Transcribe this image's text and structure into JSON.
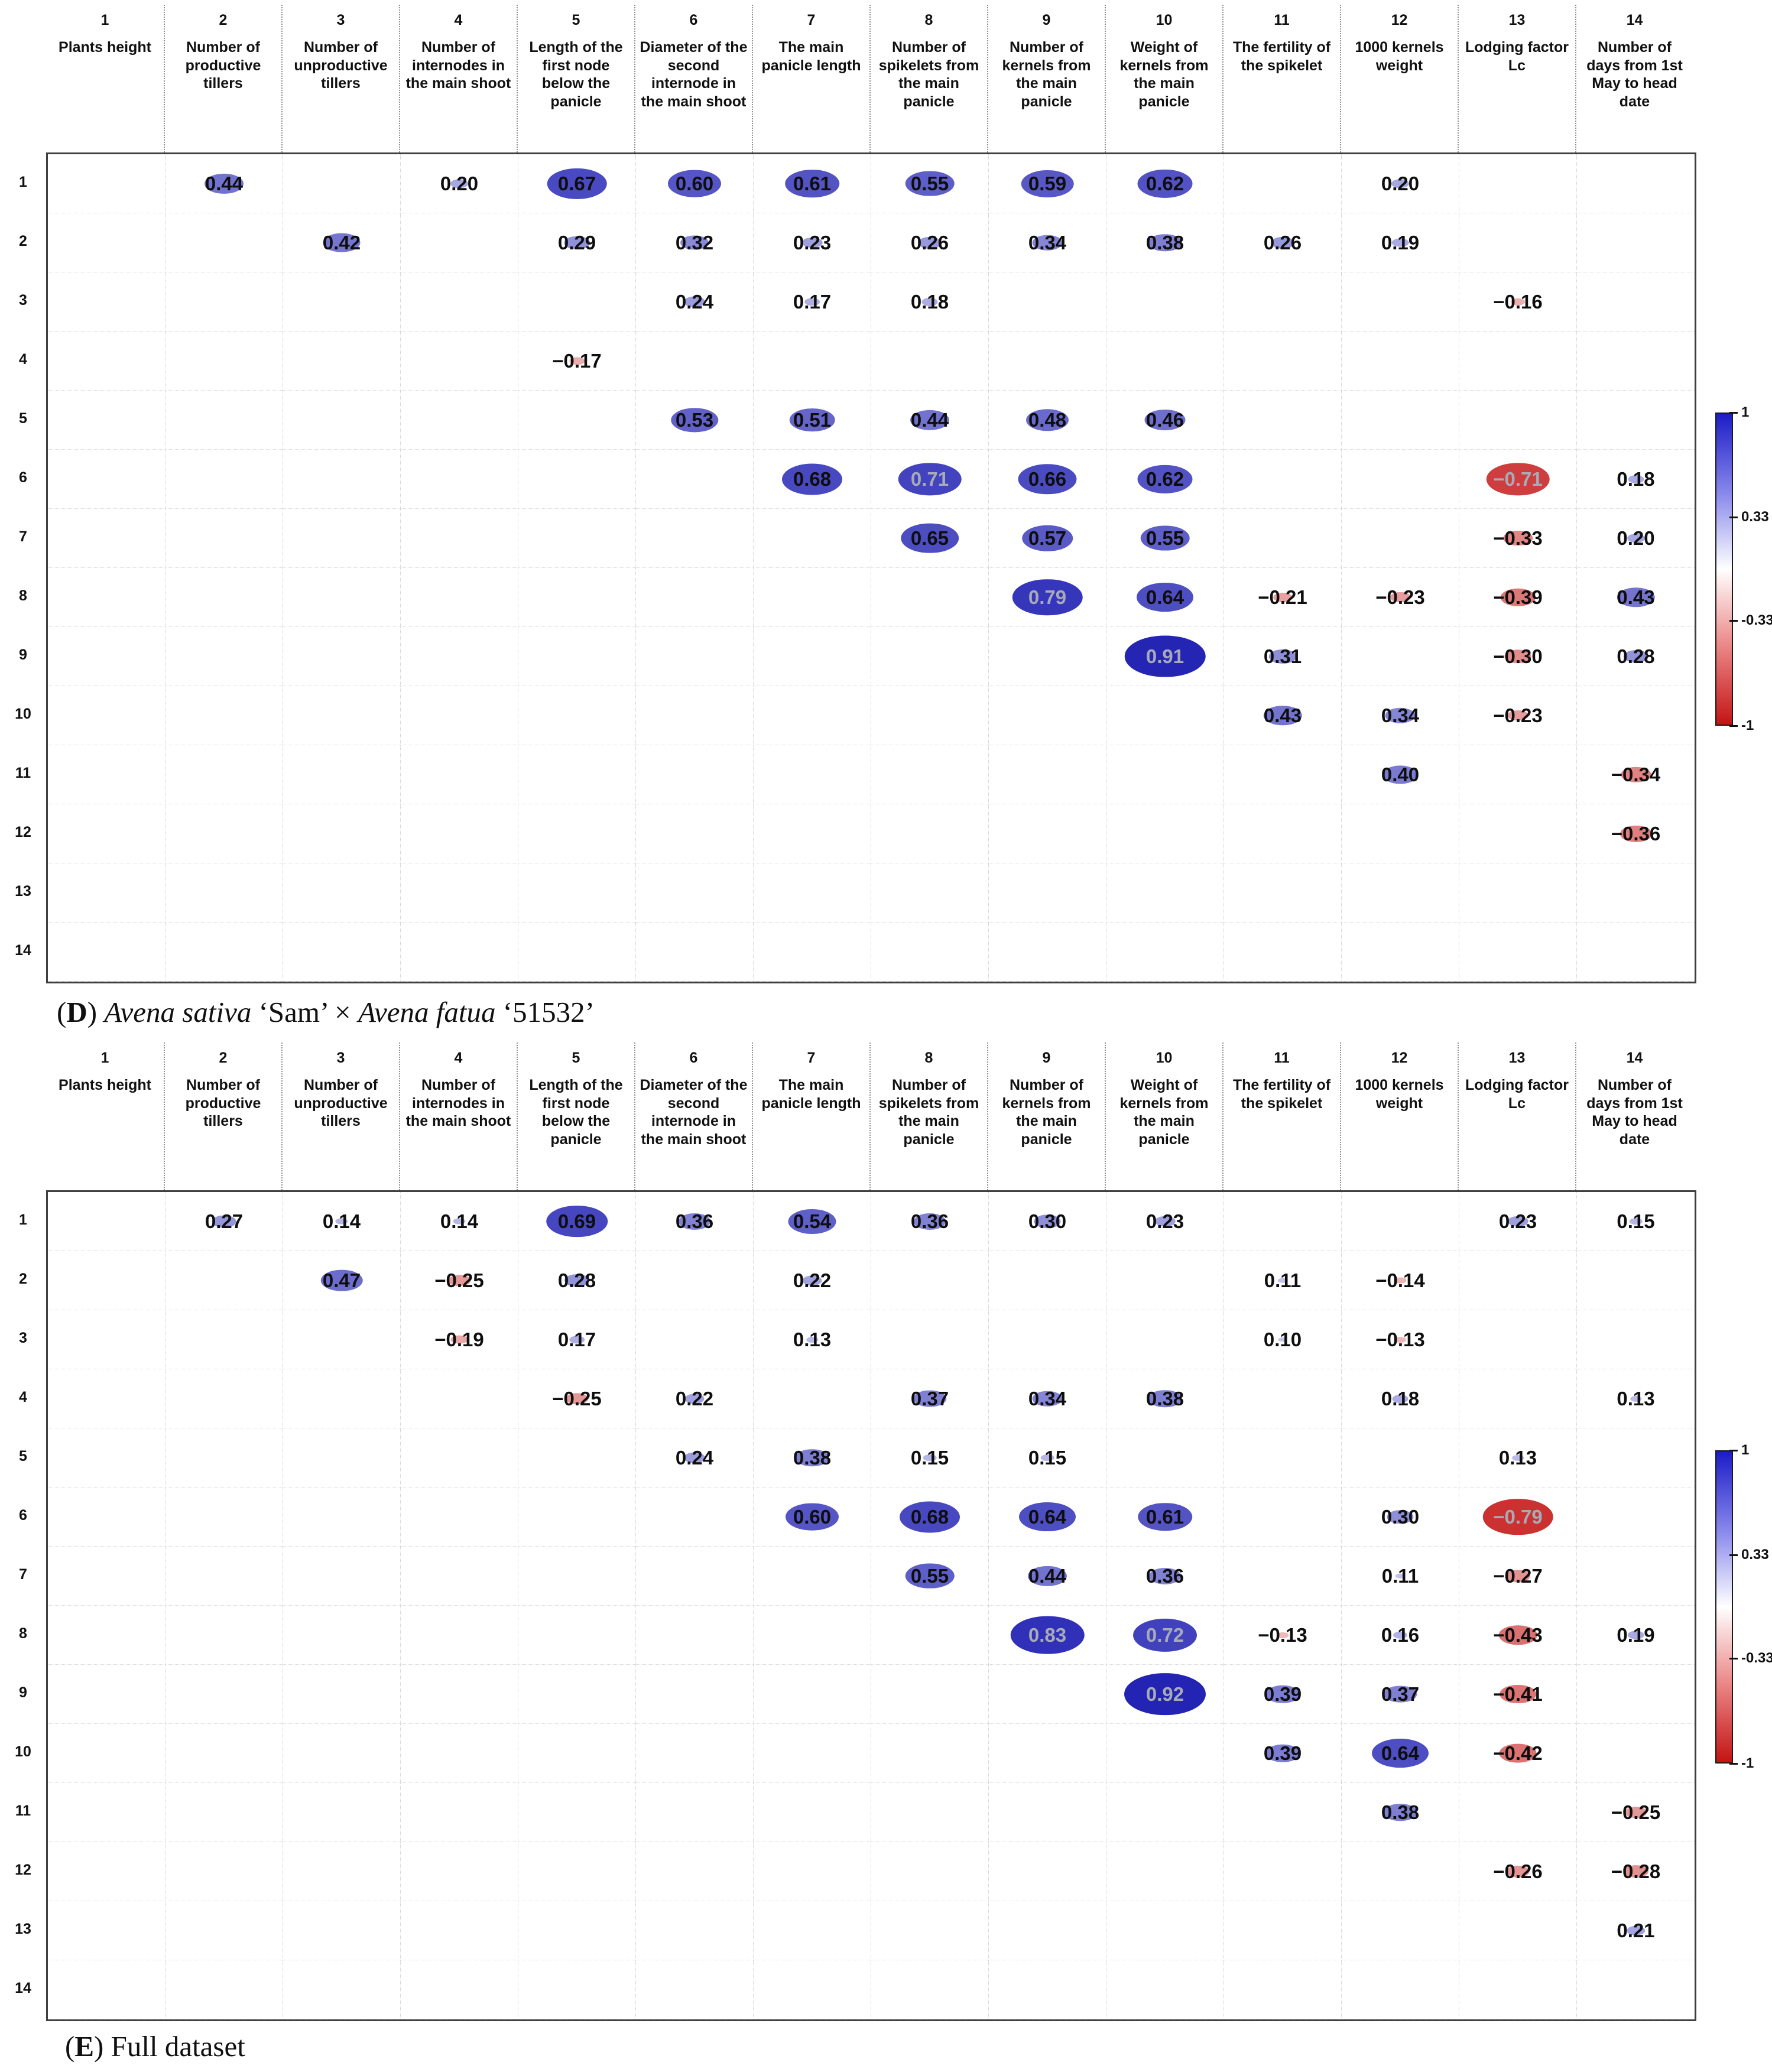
{
  "legend": {
    "ticks": [
      "1",
      "0.33",
      "-0.33",
      "-1"
    ]
  },
  "chart_data": [
    {
      "type": "heatmap",
      "subtype": "correlation-matrix-upper-triangle",
      "title": "(D) Avena sativa ‘Sam’ × Avena fatua ‘51532’",
      "caption": {
        "letter": "D",
        "parts": [
          {
            "text": "Avena sativa",
            "italic": true
          },
          {
            "text": " ‘Sam’ × ",
            "italic": false
          },
          {
            "text": "Avena fatua",
            "italic": true
          },
          {
            "text": " ‘51532’",
            "italic": false
          }
        ]
      },
      "col_numbers": [
        "1",
        "2",
        "3",
        "4",
        "5",
        "6",
        "7",
        "8",
        "9",
        "10",
        "11",
        "12",
        "13",
        "14"
      ],
      "row_numbers": [
        "1",
        "2",
        "3",
        "4",
        "5",
        "6",
        "7",
        "8",
        "9",
        "10",
        "11",
        "12",
        "13",
        "14"
      ],
      "x_categories": [
        "Plants height",
        "Number of productive tillers",
        "Number of unproductive tillers",
        "Number of internodes in the main shoot",
        "Length of the first node below the panicle",
        "Diameter of the second internode in the main shoot",
        "The main panicle length",
        "Number of spikelets from the main panicle",
        "Number of kernels from the main panicle",
        "Weight of kernels from the main panicle",
        "The fertility of the spikelet",
        "1000 kernels weight",
        "Lodging factor Lc",
        "Number of days from 1st May to head date"
      ],
      "value_range": [
        -1,
        1
      ],
      "colorbar": {
        "position": "right",
        "ticks": [
          "1",
          "0.33",
          "-0.33",
          "-1"
        ],
        "top_color": "#1c1cc8",
        "mid_color": "#ffffff",
        "bottom_color": "#c41414"
      },
      "cells": [
        [
          1,
          2,
          0.44
        ],
        [
          1,
          4,
          0.2
        ],
        [
          1,
          5,
          0.67
        ],
        [
          1,
          6,
          0.6
        ],
        [
          1,
          7,
          0.61
        ],
        [
          1,
          8,
          0.55
        ],
        [
          1,
          9,
          0.59
        ],
        [
          1,
          10,
          0.62
        ],
        [
          1,
          12,
          0.2
        ],
        [
          2,
          3,
          0.42
        ],
        [
          2,
          5,
          0.29
        ],
        [
          2,
          6,
          0.32
        ],
        [
          2,
          7,
          0.23
        ],
        [
          2,
          8,
          0.26
        ],
        [
          2,
          9,
          0.34
        ],
        [
          2,
          10,
          0.38
        ],
        [
          2,
          11,
          0.26
        ],
        [
          2,
          12,
          0.19
        ],
        [
          3,
          6,
          0.24
        ],
        [
          3,
          7,
          0.17
        ],
        [
          3,
          8,
          0.18
        ],
        [
          3,
          13,
          -0.16
        ],
        [
          4,
          5,
          -0.17
        ],
        [
          5,
          6,
          0.53
        ],
        [
          5,
          7,
          0.51
        ],
        [
          5,
          8,
          0.44
        ],
        [
          5,
          9,
          0.48
        ],
        [
          5,
          10,
          0.46
        ],
        [
          6,
          7,
          0.68
        ],
        [
          6,
          8,
          0.71
        ],
        [
          6,
          9,
          0.66
        ],
        [
          6,
          10,
          0.62
        ],
        [
          6,
          13,
          -0.71
        ],
        [
          6,
          14,
          0.18
        ],
        [
          7,
          8,
          0.65
        ],
        [
          7,
          9,
          0.57
        ],
        [
          7,
          10,
          0.55
        ],
        [
          7,
          13,
          -0.33
        ],
        [
          7,
          14,
          0.2
        ],
        [
          8,
          9,
          0.79
        ],
        [
          8,
          10,
          0.64
        ],
        [
          8,
          11,
          -0.21
        ],
        [
          8,
          12,
          -0.23
        ],
        [
          8,
          13,
          -0.39
        ],
        [
          8,
          14,
          0.43
        ],
        [
          9,
          10,
          0.91
        ],
        [
          9,
          11,
          0.31
        ],
        [
          9,
          13,
          -0.3
        ],
        [
          9,
          14,
          0.28
        ],
        [
          10,
          11,
          0.43
        ],
        [
          10,
          12,
          0.34
        ],
        [
          10,
          13,
          -0.23
        ],
        [
          11,
          12,
          0.4
        ],
        [
          11,
          14,
          -0.34
        ],
        [
          12,
          14,
          -0.36
        ]
      ]
    },
    {
      "type": "heatmap",
      "subtype": "correlation-matrix-upper-triangle",
      "title": "(E) Full dataset",
      "caption": {
        "letter": "E",
        "parts": [
          {
            "text": "Full dataset",
            "italic": false
          }
        ]
      },
      "col_numbers": [
        "1",
        "2",
        "3",
        "4",
        "5",
        "6",
        "7",
        "8",
        "9",
        "10",
        "11",
        "12",
        "13",
        "14"
      ],
      "row_numbers": [
        "1",
        "2",
        "3",
        "4",
        "5",
        "6",
        "7",
        "8",
        "9",
        "10",
        "11",
        "12",
        "13",
        "14"
      ],
      "x_categories": [
        "Plants height",
        "Number of productive tillers",
        "Number of unproductive tillers",
        "Number of internodes in the main shoot",
        "Length of the first node below the panicle",
        "Diameter of the second internode in the main shoot",
        "The main panicle length",
        "Number of spikelets from the main panicle",
        "Number of kernels from the main panicle",
        "Weight of kernels from the main panicle",
        "The fertility of the spikelet",
        "1000 kernels weight",
        "Lodging factor Lc",
        "Number of days from 1st May to head date"
      ],
      "value_range": [
        -1,
        1
      ],
      "colorbar": {
        "position": "right",
        "ticks": [
          "1",
          "0.33",
          "-0.33",
          "-1"
        ],
        "top_color": "#1c1cc8",
        "mid_color": "#ffffff",
        "bottom_color": "#c41414"
      },
      "cells": [
        [
          1,
          2,
          0.27
        ],
        [
          1,
          3,
          0.14
        ],
        [
          1,
          4,
          0.14
        ],
        [
          1,
          5,
          0.69
        ],
        [
          1,
          6,
          0.36
        ],
        [
          1,
          7,
          0.54
        ],
        [
          1,
          8,
          0.36
        ],
        [
          1,
          9,
          0.3
        ],
        [
          1,
          10,
          0.23
        ],
        [
          1,
          13,
          0.23
        ],
        [
          1,
          14,
          0.15
        ],
        [
          2,
          3,
          0.47
        ],
        [
          2,
          4,
          -0.25
        ],
        [
          2,
          5,
          0.28
        ],
        [
          2,
          7,
          0.22
        ],
        [
          2,
          11,
          0.11
        ],
        [
          2,
          12,
          -0.14
        ],
        [
          3,
          4,
          -0.19
        ],
        [
          3,
          5,
          0.17
        ],
        [
          3,
          7,
          0.13
        ],
        [
          3,
          11,
          0.1
        ],
        [
          3,
          12,
          -0.13
        ],
        [
          4,
          5,
          -0.25
        ],
        [
          4,
          6,
          0.22
        ],
        [
          4,
          8,
          0.37
        ],
        [
          4,
          9,
          0.34
        ],
        [
          4,
          10,
          0.38
        ],
        [
          4,
          12,
          0.18
        ],
        [
          4,
          14,
          0.13
        ],
        [
          5,
          6,
          0.24
        ],
        [
          5,
          7,
          0.38
        ],
        [
          5,
          8,
          0.15
        ],
        [
          5,
          9,
          0.15
        ],
        [
          5,
          13,
          0.13
        ],
        [
          6,
          7,
          0.6
        ],
        [
          6,
          8,
          0.68
        ],
        [
          6,
          9,
          0.64
        ],
        [
          6,
          10,
          0.61
        ],
        [
          6,
          12,
          0.3
        ],
        [
          6,
          13,
          -0.79
        ],
        [
          7,
          8,
          0.55
        ],
        [
          7,
          9,
          0.44
        ],
        [
          7,
          10,
          0.36
        ],
        [
          7,
          12,
          0.11
        ],
        [
          7,
          13,
          -0.27
        ],
        [
          8,
          9,
          0.83
        ],
        [
          8,
          10,
          0.72
        ],
        [
          8,
          11,
          -0.13
        ],
        [
          8,
          12,
          0.16
        ],
        [
          8,
          13,
          -0.43
        ],
        [
          8,
          14,
          0.19
        ],
        [
          9,
          10,
          0.92
        ],
        [
          9,
          11,
          0.39
        ],
        [
          9,
          12,
          0.37
        ],
        [
          9,
          13,
          -0.41
        ],
        [
          10,
          11,
          0.39
        ],
        [
          10,
          12,
          0.64
        ],
        [
          10,
          13,
          -0.42
        ],
        [
          11,
          12,
          0.38
        ],
        [
          11,
          14,
          -0.25
        ],
        [
          12,
          13,
          -0.26
        ],
        [
          12,
          14,
          -0.28
        ],
        [
          13,
          14,
          0.21
        ]
      ]
    }
  ]
}
